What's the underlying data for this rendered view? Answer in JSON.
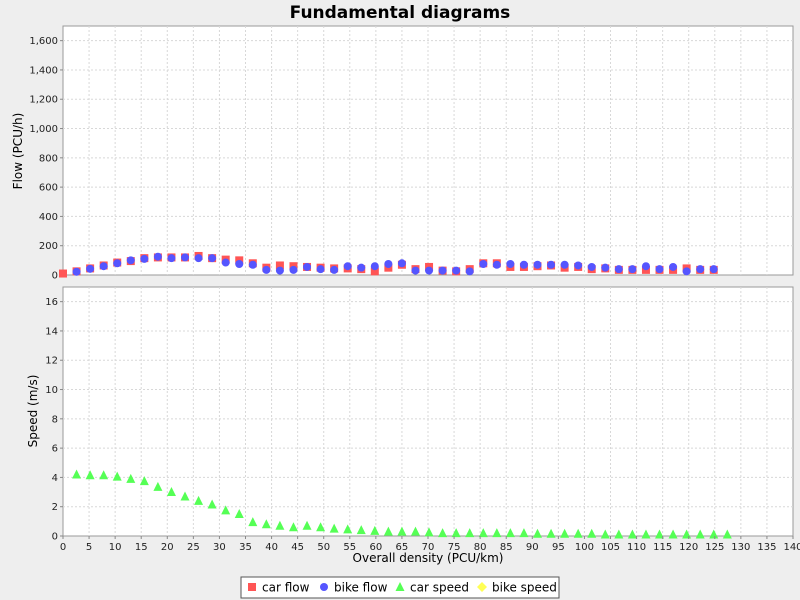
{
  "chart_data": {
    "type": "scatter",
    "title": "Fundamental diagrams",
    "xlabel": "Overall density (PCU/km)",
    "xlim": [
      0,
      140
    ],
    "x_ticks": [
      "0",
      "5",
      "10",
      "15",
      "20",
      "25",
      "30",
      "35",
      "40",
      "45",
      "50",
      "55",
      "60",
      "65",
      "70",
      "75",
      "80",
      "85",
      "90",
      "95",
      "100",
      "105",
      "110",
      "115",
      "120",
      "125",
      "130",
      "135",
      "140"
    ],
    "grid": true,
    "legend_placement": "bottom",
    "subplots": [
      {
        "ylabel": "Flow (PCU/h)",
        "ylim": [
          0,
          1700
        ],
        "y_ticks": [
          "0",
          "200",
          "400",
          "600",
          "800",
          "1,000",
          "1,200",
          "1,400",
          "1,600"
        ],
        "series": [
          {
            "name": "car flow",
            "color": "#ff5555",
            "marker": "square",
            "points": [
              [
                0,
                10
              ],
              [
                2.6,
                25
              ],
              [
                5.2,
                45
              ],
              [
                7.8,
                65
              ],
              [
                10.4,
                85
              ],
              [
                13,
                95
              ],
              [
                15.6,
                115
              ],
              [
                18.2,
                120
              ],
              [
                20.8,
                120
              ],
              [
                23.4,
                120
              ],
              [
                26,
                130
              ],
              [
                28.6,
                115
              ],
              [
                31.2,
                105
              ],
              [
                33.8,
                100
              ],
              [
                36.4,
                80
              ],
              [
                39,
                50
              ],
              [
                41.6,
                65
              ],
              [
                44.2,
                60
              ],
              [
                46.8,
                55
              ],
              [
                49.4,
                50
              ],
              [
                52,
                45
              ],
              [
                54.6,
                45
              ],
              [
                57.2,
                40
              ],
              [
                59.8,
                25
              ],
              [
                62.4,
                50
              ],
              [
                65,
                70
              ],
              [
                67.6,
                40
              ],
              [
                70.2,
                55
              ],
              [
                72.8,
                30
              ],
              [
                75.4,
                25
              ],
              [
                78,
                40
              ],
              [
                80.6,
                80
              ],
              [
                83.2,
                80
              ],
              [
                85.8,
                55
              ],
              [
                88.4,
                55
              ],
              [
                91,
                60
              ],
              [
                93.6,
                65
              ],
              [
                96.2,
                50
              ],
              [
                98.8,
                55
              ],
              [
                101.4,
                40
              ],
              [
                104,
                45
              ],
              [
                106.6,
                35
              ],
              [
                109.2,
                35
              ],
              [
                111.8,
                35
              ],
              [
                114.4,
                35
              ],
              [
                117,
                35
              ],
              [
                119.6,
                45
              ],
              [
                122.2,
                35
              ],
              [
                124.8,
                35
              ]
            ]
          },
          {
            "name": "bike flow",
            "color": "#5555ff",
            "marker": "circle",
            "points": [
              [
                2.6,
                22
              ],
              [
                5.2,
                42
              ],
              [
                7.8,
                60
              ],
              [
                10.4,
                80
              ],
              [
                13,
                100
              ],
              [
                15.6,
                110
              ],
              [
                18.2,
                125
              ],
              [
                20.8,
                115
              ],
              [
                23.4,
                120
              ],
              [
                26,
                115
              ],
              [
                28.6,
                115
              ],
              [
                31.2,
                85
              ],
              [
                33.8,
                75
              ],
              [
                36.4,
                70
              ],
              [
                39,
                35
              ],
              [
                41.6,
                30
              ],
              [
                44.2,
                35
              ],
              [
                46.8,
                55
              ],
              [
                49.4,
                40
              ],
              [
                52,
                35
              ],
              [
                54.6,
                60
              ],
              [
                57.2,
                50
              ],
              [
                59.8,
                60
              ],
              [
                62.4,
                75
              ],
              [
                65,
                80
              ],
              [
                67.6,
                30
              ],
              [
                70.2,
                30
              ],
              [
                72.8,
                30
              ],
              [
                75.4,
                30
              ],
              [
                78,
                25
              ],
              [
                80.6,
                75
              ],
              [
                83.2,
                70
              ],
              [
                85.8,
                75
              ],
              [
                88.4,
                70
              ],
              [
                91,
                70
              ],
              [
                93.6,
                70
              ],
              [
                96.2,
                70
              ],
              [
                98.8,
                65
              ],
              [
                101.4,
                55
              ],
              [
                104,
                50
              ],
              [
                106.6,
                40
              ],
              [
                109.2,
                40
              ],
              [
                111.8,
                60
              ],
              [
                114.4,
                40
              ],
              [
                117,
                55
              ],
              [
                119.6,
                25
              ],
              [
                122.2,
                40
              ],
              [
                124.8,
                40
              ]
            ]
          }
        ]
      },
      {
        "ylabel": "Speed (m/s)",
        "ylim": [
          0,
          17
        ],
        "y_ticks": [
          "0",
          "2",
          "4",
          "6",
          "8",
          "10",
          "12",
          "14",
          "16"
        ],
        "series": [
          {
            "name": "car speed",
            "color": "#55ff55",
            "marker": "triangle",
            "points": [
              [
                2.6,
                4.2
              ],
              [
                5.2,
                4.15
              ],
              [
                7.8,
                4.15
              ],
              [
                10.4,
                4.05
              ],
              [
                13,
                3.9
              ],
              [
                15.6,
                3.75
              ],
              [
                18.2,
                3.35
              ],
              [
                20.8,
                3.0
              ],
              [
                23.4,
                2.7
              ],
              [
                26,
                2.4
              ],
              [
                28.6,
                2.15
              ],
              [
                31.2,
                1.75
              ],
              [
                33.8,
                1.5
              ],
              [
                36.4,
                0.95
              ],
              [
                39,
                0.8
              ],
              [
                41.6,
                0.7
              ],
              [
                44.2,
                0.6
              ],
              [
                46.8,
                0.7
              ],
              [
                49.4,
                0.6
              ],
              [
                52,
                0.5
              ],
              [
                54.6,
                0.45
              ],
              [
                57.2,
                0.4
              ],
              [
                59.8,
                0.35
              ],
              [
                62.4,
                0.3
              ],
              [
                65,
                0.3
              ],
              [
                67.6,
                0.3
              ],
              [
                70.2,
                0.25
              ],
              [
                72.8,
                0.2
              ],
              [
                75.4,
                0.2
              ],
              [
                78,
                0.2
              ],
              [
                80.6,
                0.2
              ],
              [
                83.2,
                0.2
              ],
              [
                85.8,
                0.2
              ],
              [
                88.4,
                0.2
              ],
              [
                91,
                0.15
              ],
              [
                93.6,
                0.15
              ],
              [
                96.2,
                0.15
              ],
              [
                98.8,
                0.15
              ],
              [
                101.4,
                0.15
              ],
              [
                104,
                0.1
              ],
              [
                106.6,
                0.1
              ],
              [
                109.2,
                0.1
              ],
              [
                111.8,
                0.1
              ],
              [
                114.4,
                0.1
              ],
              [
                117,
                0.1
              ],
              [
                119.6,
                0.1
              ],
              [
                122.2,
                0.1
              ],
              [
                124.8,
                0.1
              ],
              [
                127.4,
                0.1
              ]
            ]
          },
          {
            "name": "bike speed",
            "color": "#ffff55",
            "marker": "diamond",
            "points": []
          }
        ]
      }
    ],
    "legend": [
      {
        "label": "car flow",
        "color": "#ff5555",
        "marker": "square"
      },
      {
        "label": "bike flow",
        "color": "#5555ff",
        "marker": "circle"
      },
      {
        "label": "car speed",
        "color": "#55ff55",
        "marker": "triangle"
      },
      {
        "label": "bike speed",
        "color": "#ffff55",
        "marker": "diamond"
      }
    ]
  }
}
